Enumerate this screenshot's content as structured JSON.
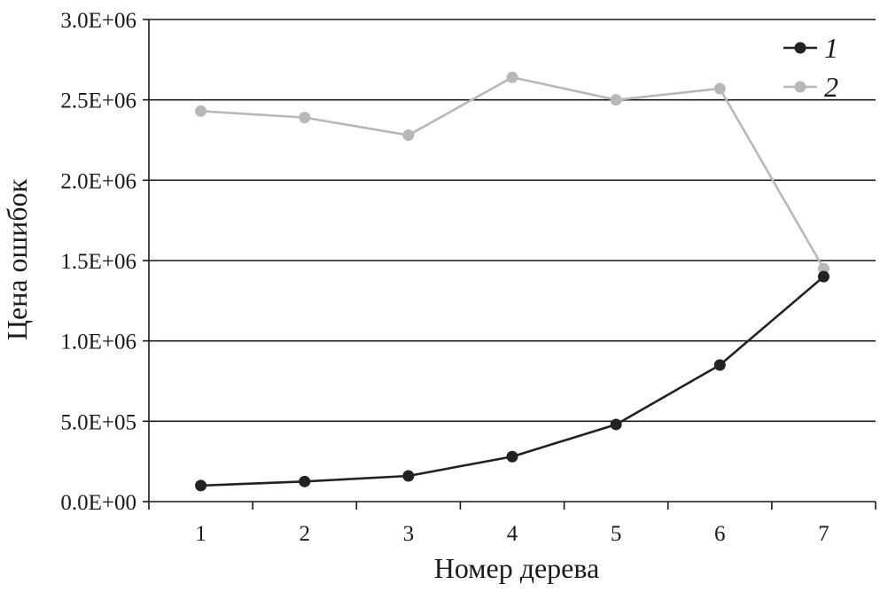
{
  "chart_data": {
    "type": "line",
    "title": "",
    "xlabel": "Номер дерева",
    "ylabel": "Цена ошибок",
    "x": [
      "1",
      "2",
      "3",
      "4",
      "5",
      "6",
      "7"
    ],
    "ylim": [
      0,
      3000000
    ],
    "yticks": [
      {
        "value": 0,
        "label": "0.0E+00"
      },
      {
        "value": 500000,
        "label": "5.0E+05"
      },
      {
        "value": 1000000,
        "label": "1.0E+06"
      },
      {
        "value": 1500000,
        "label": "1.5E+06"
      },
      {
        "value": 2000000,
        "label": "2.0E+06"
      },
      {
        "value": 2500000,
        "label": "2.5E+06"
      },
      {
        "value": 3000000,
        "label": "3.0E+06"
      }
    ],
    "grid": "horizontal",
    "legend_position": "top-right",
    "series": [
      {
        "name": "1",
        "color": "#222222",
        "values": [
          100000,
          125000,
          160000,
          280000,
          480000,
          850000,
          1400000
        ]
      },
      {
        "name": "2",
        "color": "#b8b8b8",
        "values": [
          2430000,
          2390000,
          2280000,
          2640000,
          2500000,
          2570000,
          1450000
        ]
      }
    ]
  }
}
